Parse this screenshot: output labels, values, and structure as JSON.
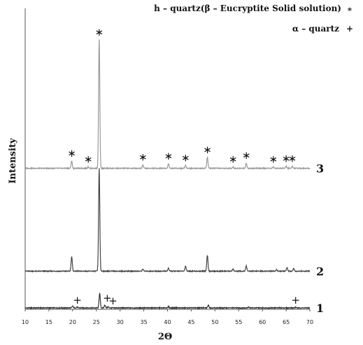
{
  "chart_data": {
    "type": "line",
    "xlabel": "2Θ",
    "ylabel": "Intensity",
    "xlim": [
      10,
      70
    ],
    "x_ticks": [
      10,
      15,
      20,
      25,
      30,
      35,
      40,
      45,
      50,
      55,
      60,
      65,
      70
    ],
    "y_ticks_shown": false,
    "grid": false,
    "legend": {
      "placement": "top-right",
      "entries": [
        {
          "label": "h – quartz(β – Eucryptite Solid solution)",
          "symbol": "∗"
        },
        {
          "label": "α – quartz",
          "symbol": "+"
        }
      ]
    },
    "series": [
      {
        "name": "1",
        "color": "#333333",
        "baseline_offset": 0,
        "peaks": [
          {
            "x": 20.0,
            "y": 2.5
          },
          {
            "x": 21.0,
            "y": 1.0
          },
          {
            "x": 25.7,
            "y": 20.0
          },
          {
            "x": 26.8,
            "y": 4.0
          },
          {
            "x": 27.5,
            "y": 1.5
          },
          {
            "x": 40.2,
            "y": 1.5
          },
          {
            "x": 48.6,
            "y": 4.0
          },
          {
            "x": 57.0,
            "y": 1.2
          },
          {
            "x": 67.0,
            "y": 1.0
          }
        ]
      },
      {
        "name": "2",
        "color": "#444444",
        "baseline_offset": 50,
        "peaks": [
          {
            "x": 19.8,
            "y": 20.0
          },
          {
            "x": 25.6,
            "y": 140.0
          },
          {
            "x": 34.8,
            "y": 3.0
          },
          {
            "x": 40.2,
            "y": 4.0
          },
          {
            "x": 43.8,
            "y": 7.0
          },
          {
            "x": 48.4,
            "y": 22.0
          },
          {
            "x": 53.8,
            "y": 3.0
          },
          {
            "x": 56.6,
            "y": 7.0
          },
          {
            "x": 63.0,
            "y": 2.0
          },
          {
            "x": 65.2,
            "y": 5.0
          },
          {
            "x": 66.6,
            "y": 4.0
          }
        ]
      },
      {
        "name": "3",
        "color": "#999999",
        "baseline_offset": 190,
        "peaks": [
          {
            "x": 19.8,
            "y": 10.0
          },
          {
            "x": 23.3,
            "y": 2.0
          },
          {
            "x": 25.6,
            "y": 175.0
          },
          {
            "x": 34.8,
            "y": 5.0
          },
          {
            "x": 40.2,
            "y": 6.0
          },
          {
            "x": 43.8,
            "y": 4.0
          },
          {
            "x": 48.4,
            "y": 15.0
          },
          {
            "x": 53.8,
            "y": 2.0
          },
          {
            "x": 56.6,
            "y": 7.0
          },
          {
            "x": 62.3,
            "y": 2.0
          },
          {
            "x": 65.0,
            "y": 3.0
          },
          {
            "x": 66.3,
            "y": 3.0
          }
        ]
      }
    ],
    "annotations": [
      {
        "series": "3",
        "x": 19.8,
        "symbol": "∗"
      },
      {
        "series": "3",
        "x": 23.3,
        "symbol": "∗"
      },
      {
        "series": "3",
        "x": 25.6,
        "symbol": "∗"
      },
      {
        "series": "3",
        "x": 34.8,
        "symbol": "∗"
      },
      {
        "series": "3",
        "x": 40.2,
        "symbol": "∗"
      },
      {
        "series": "3",
        "x": 43.8,
        "symbol": "∗"
      },
      {
        "series": "3",
        "x": 48.4,
        "symbol": "∗"
      },
      {
        "series": "3",
        "x": 53.8,
        "symbol": "∗"
      },
      {
        "series": "3",
        "x": 56.6,
        "symbol": "∗"
      },
      {
        "series": "3",
        "x": 62.3,
        "symbol": "∗"
      },
      {
        "series": "3",
        "x": 65.0,
        "symbol": "∗"
      },
      {
        "series": "3",
        "x": 66.3,
        "symbol": "∗"
      },
      {
        "series": "1",
        "x": 21.0,
        "symbol": "+"
      },
      {
        "series": "1",
        "x": 27.3,
        "symbol": "+"
      },
      {
        "series": "1",
        "x": 28.5,
        "symbol": "+"
      },
      {
        "series": "1",
        "x": 67.0,
        "symbol": "+"
      }
    ]
  }
}
